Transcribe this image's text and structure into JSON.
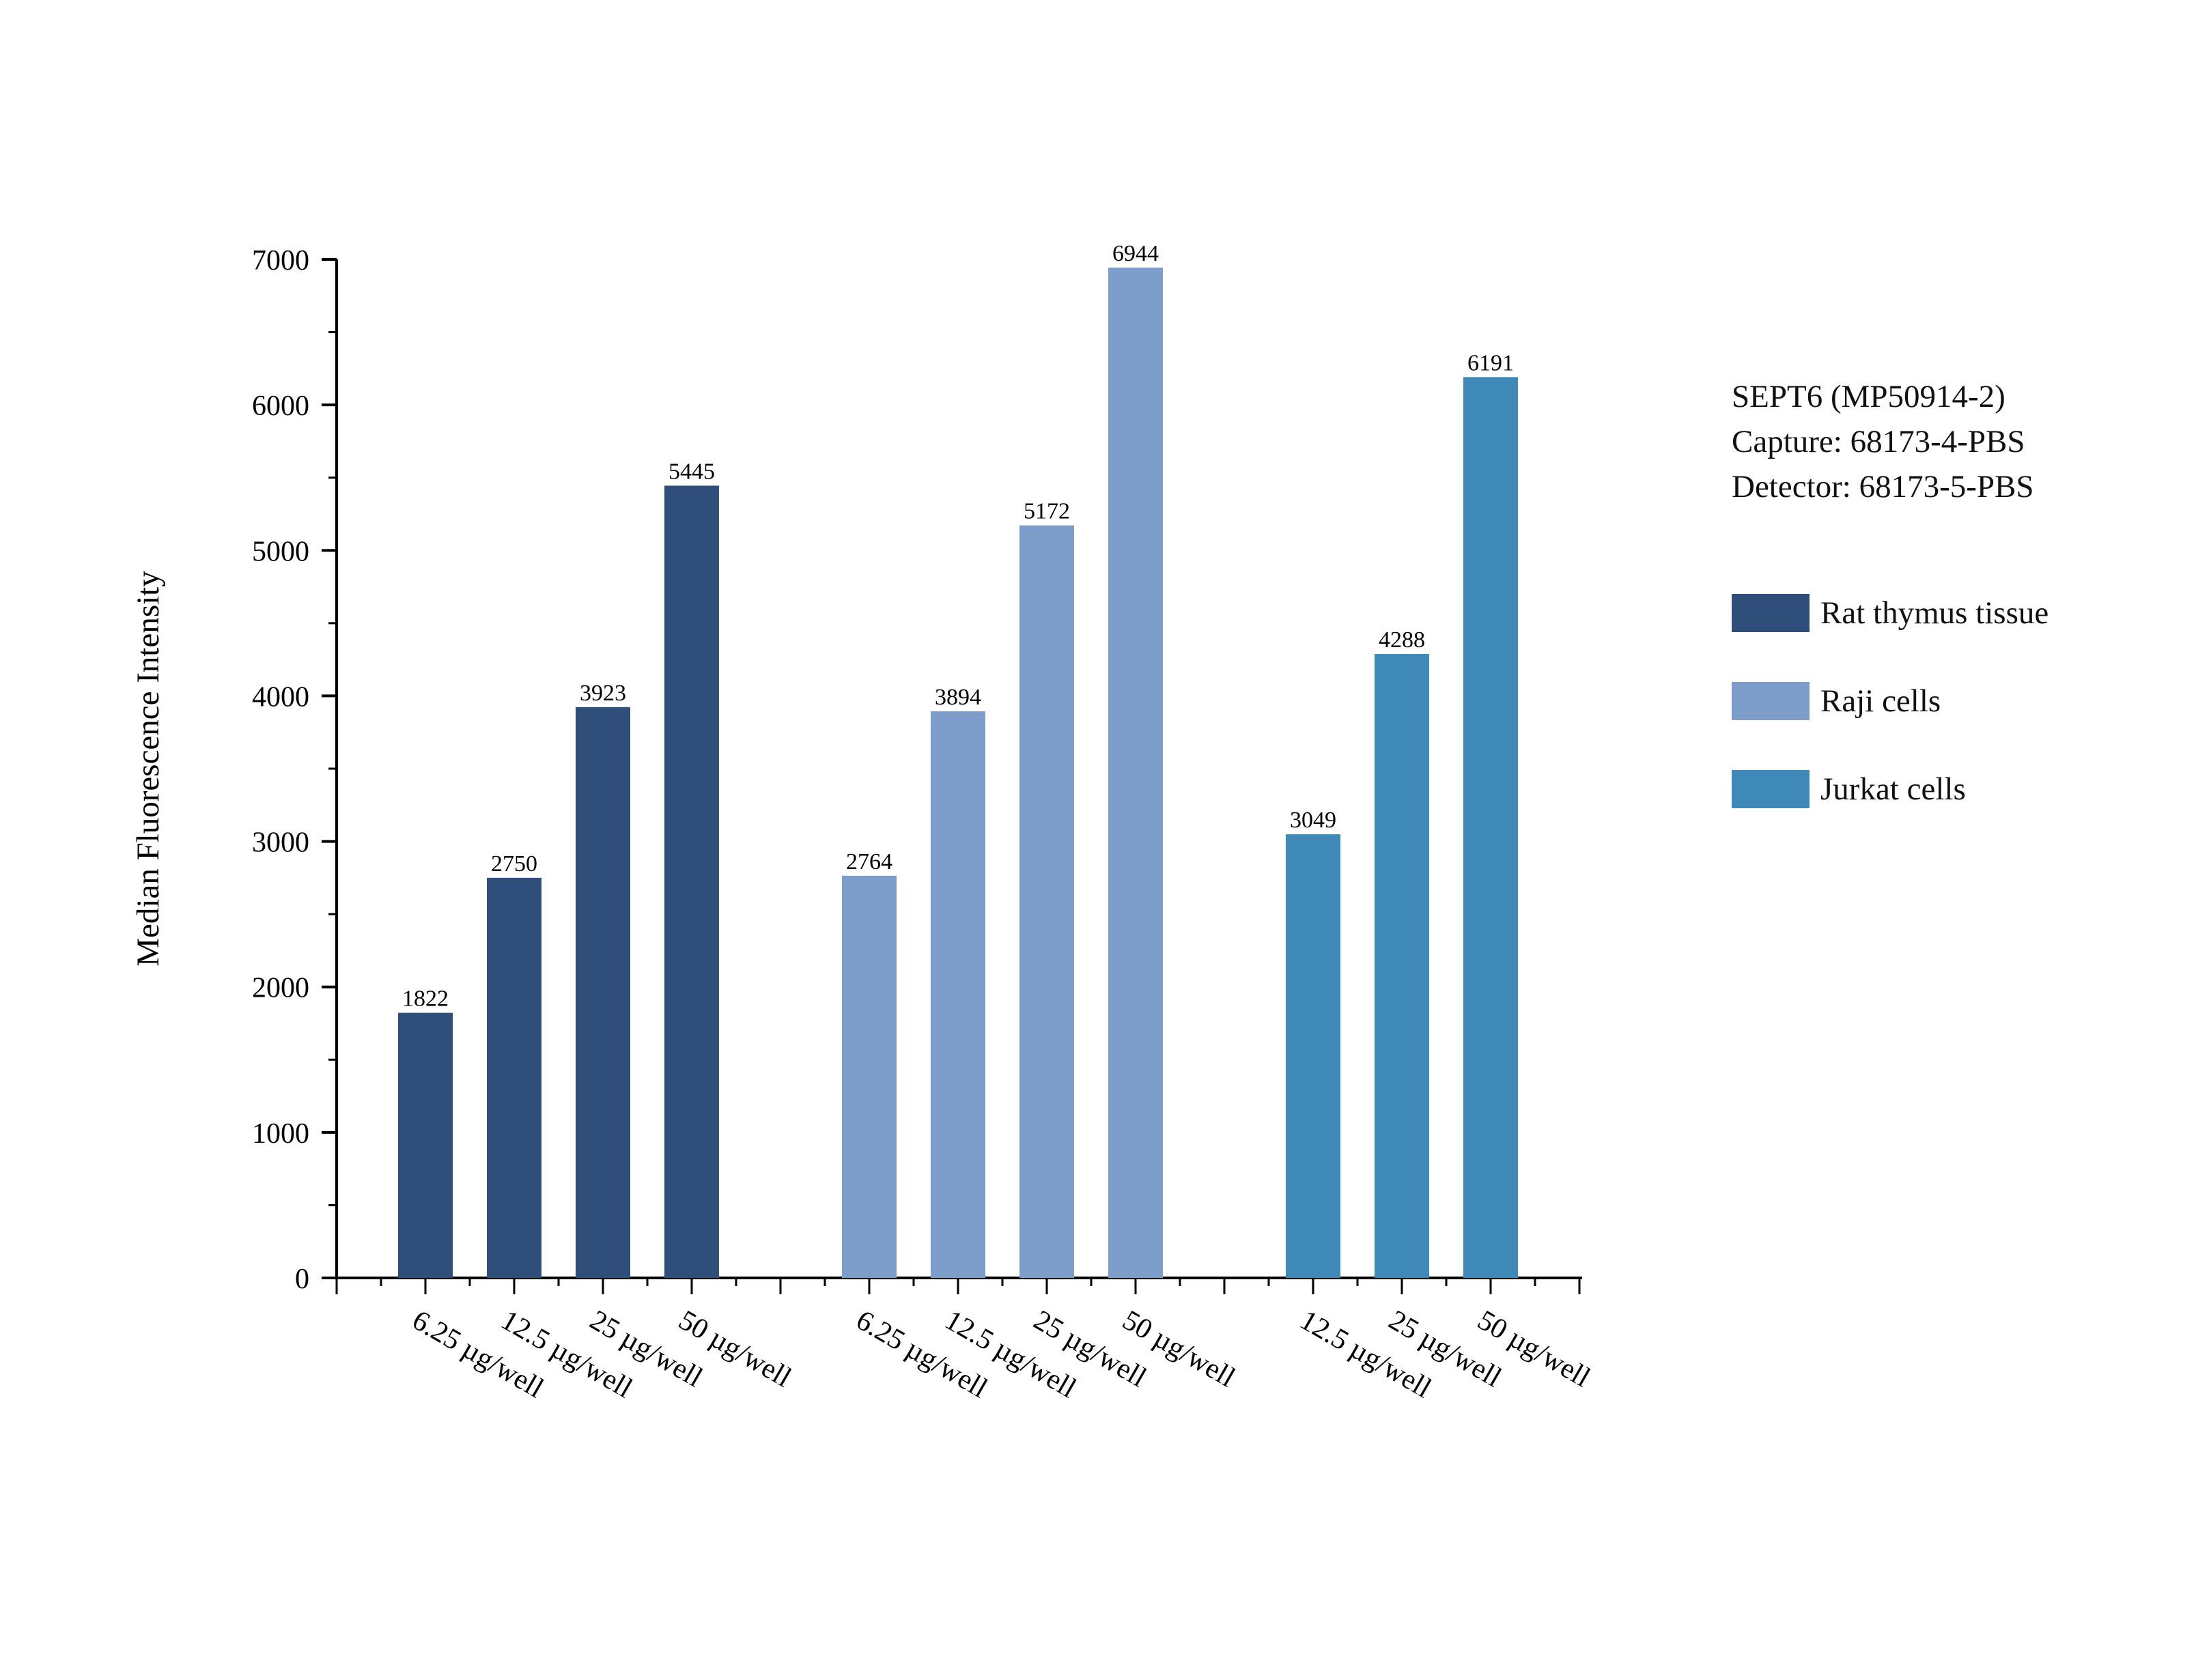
{
  "chart_data": {
    "type": "bar",
    "ylabel": "Median Fluorescence Intensity",
    "ylim": [
      0,
      7000
    ],
    "yticks": [
      "0",
      "1000",
      "2000",
      "3000",
      "4000",
      "5000",
      "6000",
      "7000"
    ],
    "groups": [
      {
        "name": "Rat thymus tissue",
        "color": "#2f4f7a",
        "categories": [
          "6.25 µg/well",
          "12.5 µg/well",
          "25 µg/well",
          "50 µg/well"
        ],
        "values": [
          1822,
          2750,
          3923,
          5445
        ]
      },
      {
        "name": "Raji cells",
        "color": "#7d9dcb",
        "categories": [
          "6.25 µg/well",
          "12.5 µg/well",
          "25 µg/well",
          "50 µg/well"
        ],
        "values": [
          2764,
          3894,
          5172,
          6944
        ]
      },
      {
        "name": "Jurkat cells",
        "color": "#3e89b8",
        "categories": [
          "12.5 µg/well",
          "25 µg/well",
          "50 µg/well"
        ],
        "values": [
          3049,
          4288,
          6191
        ]
      }
    ]
  },
  "legend": {
    "title_lines": [
      "SEPT6 (MP50914-2)",
      "Capture: 68173-4-PBS",
      "Detector: 68173-5-PBS"
    ],
    "items": [
      {
        "label": "Rat thymus tissue",
        "color": "#2f4f7a"
      },
      {
        "label": "Raji cells",
        "color": "#7d9dcb"
      },
      {
        "label": "Jurkat cells",
        "color": "#3e89b8"
      }
    ]
  }
}
